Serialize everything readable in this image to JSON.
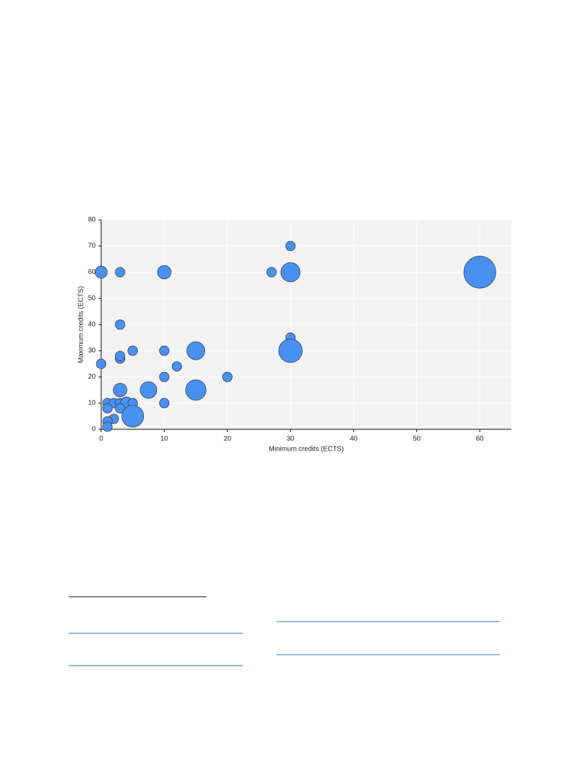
{
  "chart_data": {
    "type": "bubble",
    "xlabel": "Minimum credits (ECTS)",
    "ylabel": "Maximum credits (ECTS)",
    "x": [
      0,
      3,
      10,
      27,
      30,
      30,
      60,
      3,
      0,
      3,
      3,
      5,
      10,
      15,
      30,
      30,
      12,
      10,
      20,
      3,
      7.5,
      15,
      1,
      2,
      3,
      4,
      5,
      10,
      1,
      3,
      2,
      1,
      1,
      5
    ],
    "values": [
      60,
      60,
      60,
      60,
      60,
      70,
      60,
      40,
      25,
      27,
      28,
      30,
      30,
      30,
      35,
      30,
      24,
      20,
      20,
      15,
      15,
      15,
      10,
      10,
      10,
      10,
      10,
      10,
      8,
      8,
      4,
      3,
      1,
      5
    ],
    "sizes": [
      1.6,
      1,
      2,
      1,
      4,
      1,
      11,
      1,
      1,
      1,
      1,
      1,
      1,
      3.5,
      1,
      6,
      1,
      1,
      1,
      2,
      3,
      4.5,
      1,
      1,
      1,
      1.6,
      1,
      1,
      1,
      1,
      1,
      1,
      1,
      5.2
    ],
    "color": "#4a90ee",
    "xlim": [
      0,
      65
    ],
    "xticks": [
      0,
      10,
      20,
      30,
      40,
      50,
      60
    ],
    "ylim": [
      0,
      80
    ],
    "yticks": [
      0,
      10,
      20,
      30,
      40,
      50,
      60,
      70,
      80
    ],
    "grid": true
  }
}
